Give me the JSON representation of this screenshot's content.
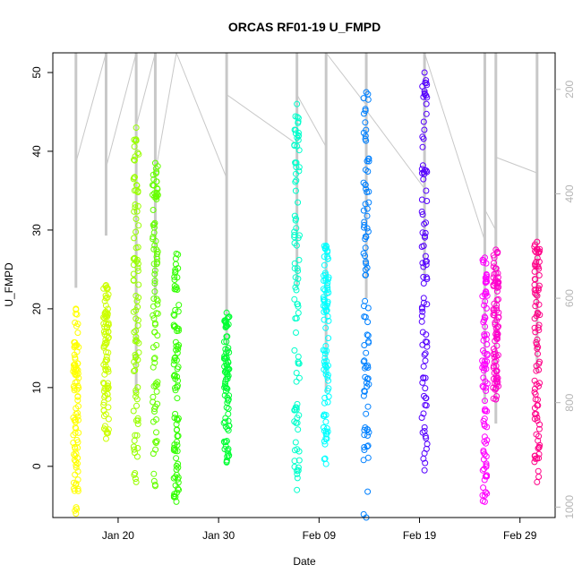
{
  "chart_data": {
    "type": "scatter",
    "title": "ORCAS RF01-19 U_FMPD",
    "xlabel": "Date",
    "ylabel": "U_FMPD",
    "ylim": [
      -6.5,
      52.5
    ],
    "y_ticks": [
      0,
      10,
      20,
      30,
      40,
      50
    ],
    "x_ticks": [
      {
        "label": "Jan 20",
        "day": 20
      },
      {
        "label": "Jan 30",
        "day": 30
      },
      {
        "label": "Feb 09",
        "day": 40
      },
      {
        "label": "Feb 19",
        "day": 50
      },
      {
        "label": "Feb 29",
        "day": 60
      }
    ],
    "xlim_day": [
      13.5,
      63.5
    ],
    "right_axis": {
      "ticks": [
        200,
        400,
        600,
        800,
        1000
      ],
      "ylim": [
        1020,
        130
      ],
      "color": "#b5b5b5"
    },
    "grid": false,
    "legend": "none",
    "series": [
      {
        "day": 15.8,
        "ymin": -6,
        "ymax": 20,
        "color": "#ffff00"
      },
      {
        "day": 18.8,
        "ymin": 3.5,
        "ymax": 23,
        "color": "#ccff00"
      },
      {
        "day": 21.8,
        "ymin": -2,
        "ymax": 43,
        "color": "#99ff00"
      },
      {
        "day": 23.7,
        "ymin": -2.5,
        "ymax": 38.5,
        "color": "#66ff00"
      },
      {
        "day": 25.8,
        "ymin": -4.5,
        "ymax": 27,
        "color": "#33ff00"
      },
      {
        "day": 30.8,
        "ymin": 0.5,
        "ymax": 19.5,
        "color": "#00ff33"
      },
      {
        "day": 37.8,
        "ymin": -3,
        "ymax": 46,
        "color": "#00ffcc"
      },
      {
        "day": 40.7,
        "ymin": 0.3,
        "ymax": 28,
        "color": "#00ffff"
      },
      {
        "day": 44.7,
        "ymin": -6.5,
        "ymax": 47.5,
        "color": "#0080ff"
      },
      {
        "day": 50.5,
        "ymin": -0.5,
        "ymax": 50,
        "color": "#5500ff"
      },
      {
        "day": 56.5,
        "ymin": -4.5,
        "ymax": 26.5,
        "color": "#ff00ff"
      },
      {
        "day": 57.6,
        "ymin": 8.5,
        "ymax": 27.5,
        "color": "#ff00cc"
      },
      {
        "day": 61.7,
        "ymin": -2,
        "ymax": 28.5,
        "color": "#ff0088"
      }
    ],
    "profiles": [
      {
        "day": 15.8,
        "pmin": 130,
        "pmax": 580
      },
      {
        "day": 18.8,
        "pmin": 130,
        "pmax": 480
      },
      {
        "day": 21.8,
        "pmin": 130,
        "pmax": 780
      },
      {
        "day": 23.7,
        "pmin": 130,
        "pmax": 600
      },
      {
        "day": 25.8,
        "pmin": 130,
        "pmax": 130
      },
      {
        "day": 30.8,
        "pmin": 130,
        "pmax": 740
      },
      {
        "day": 37.8,
        "pmin": 130,
        "pmax": 580
      },
      {
        "day": 40.7,
        "pmin": 130,
        "pmax": 780
      },
      {
        "day": 44.7,
        "pmin": 130,
        "pmax": 600
      },
      {
        "day": 50.5,
        "pmin": 130,
        "pmax": 560
      },
      {
        "day": 56.5,
        "pmin": 130,
        "pmax": 800
      },
      {
        "day": 57.6,
        "pmin": 130,
        "pmax": 840
      },
      {
        "day": 61.7,
        "pmin": 130,
        "pmax": 740
      }
    ],
    "connectors": [
      [
        15.8,
        340,
        18.8,
        130
      ],
      [
        18.8,
        350,
        21.8,
        130
      ],
      [
        21.8,
        270,
        23.7,
        130
      ],
      [
        23.7,
        360,
        25.8,
        130
      ],
      [
        25.8,
        130,
        30.8,
        370
      ],
      [
        30.8,
        210,
        37.8,
        305
      ],
      [
        37.8,
        210,
        40.7,
        310
      ],
      [
        40.7,
        130,
        44.7,
        230
      ],
      [
        44.7,
        240,
        50.5,
        390
      ],
      [
        50.5,
        130,
        56.5,
        490
      ],
      [
        56.5,
        430,
        57.6,
        470
      ],
      [
        57.6,
        330,
        61.7,
        360
      ]
    ]
  }
}
